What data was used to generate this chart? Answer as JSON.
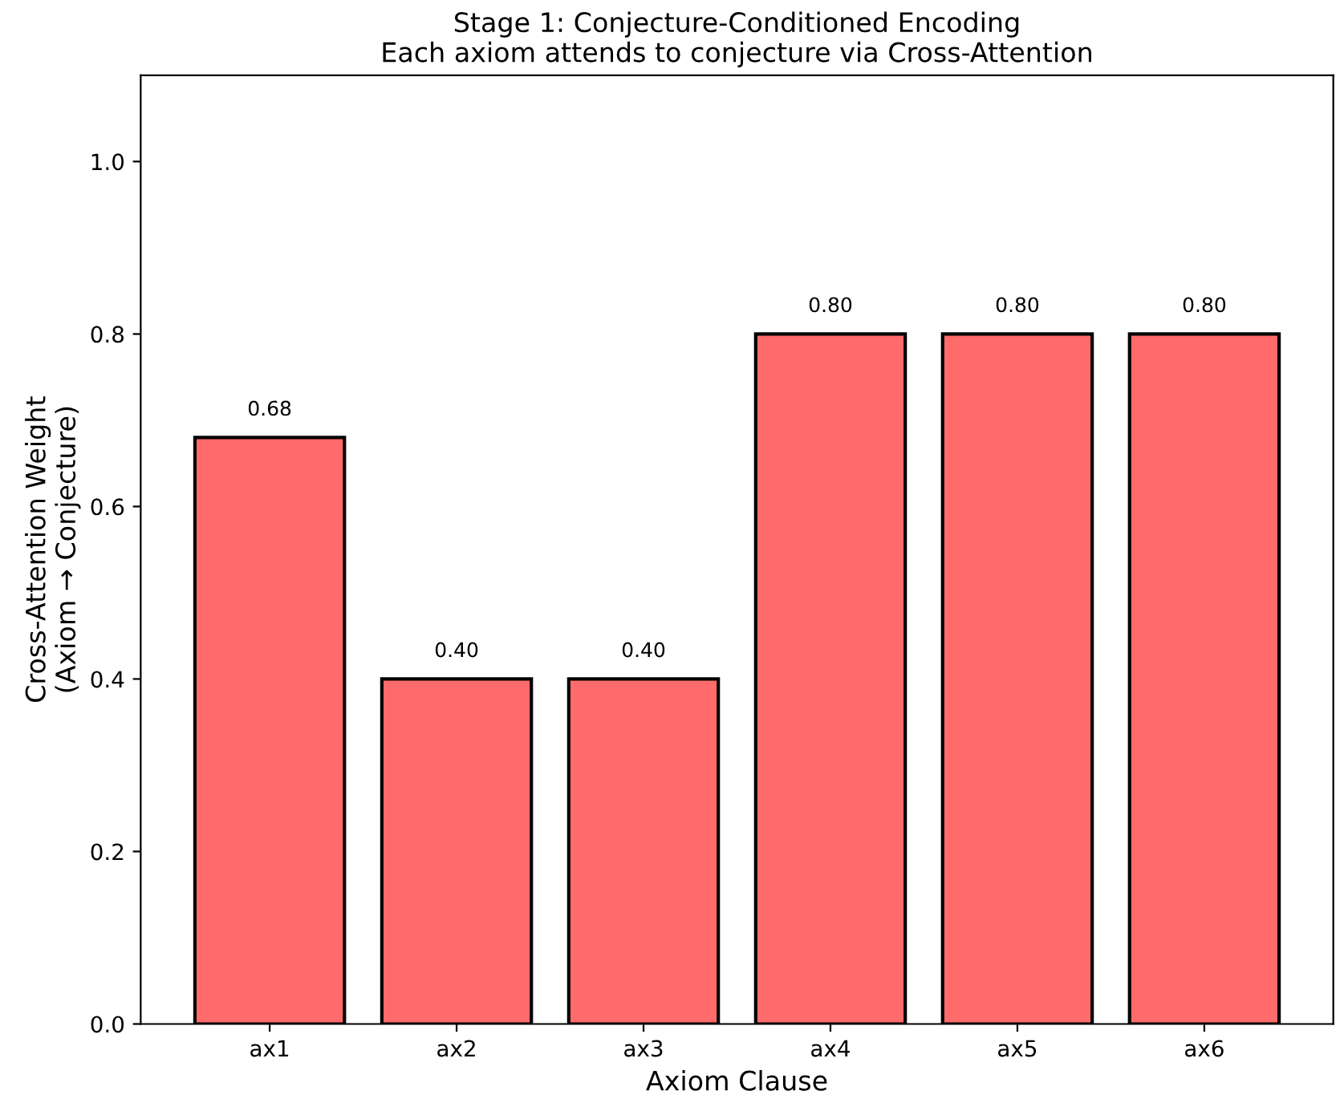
{
  "chart_data": {
    "type": "bar",
    "title": "Stage 1: Conjecture-Conditioned Encoding\nEach axiom attends to conjecture via Cross-Attention",
    "xlabel": "Axiom Clause",
    "ylabel": "Cross-Attention Weight\n(Axiom → Conjecture)",
    "categories": [
      "ax1",
      "ax2",
      "ax3",
      "ax4",
      "ax5",
      "ax6"
    ],
    "values": [
      0.68,
      0.4,
      0.4,
      0.8,
      0.8,
      0.8
    ],
    "value_labels": [
      "0.68",
      "0.40",
      "0.40",
      "0.80",
      "0.80",
      "0.80"
    ],
    "color": "#ff6b6b",
    "ylim": [
      0,
      1.1
    ],
    "yticks": [
      "0.0",
      "0.2",
      "0.4",
      "0.6",
      "0.8",
      "1.0"
    ],
    "grid": false,
    "legend": false
  }
}
